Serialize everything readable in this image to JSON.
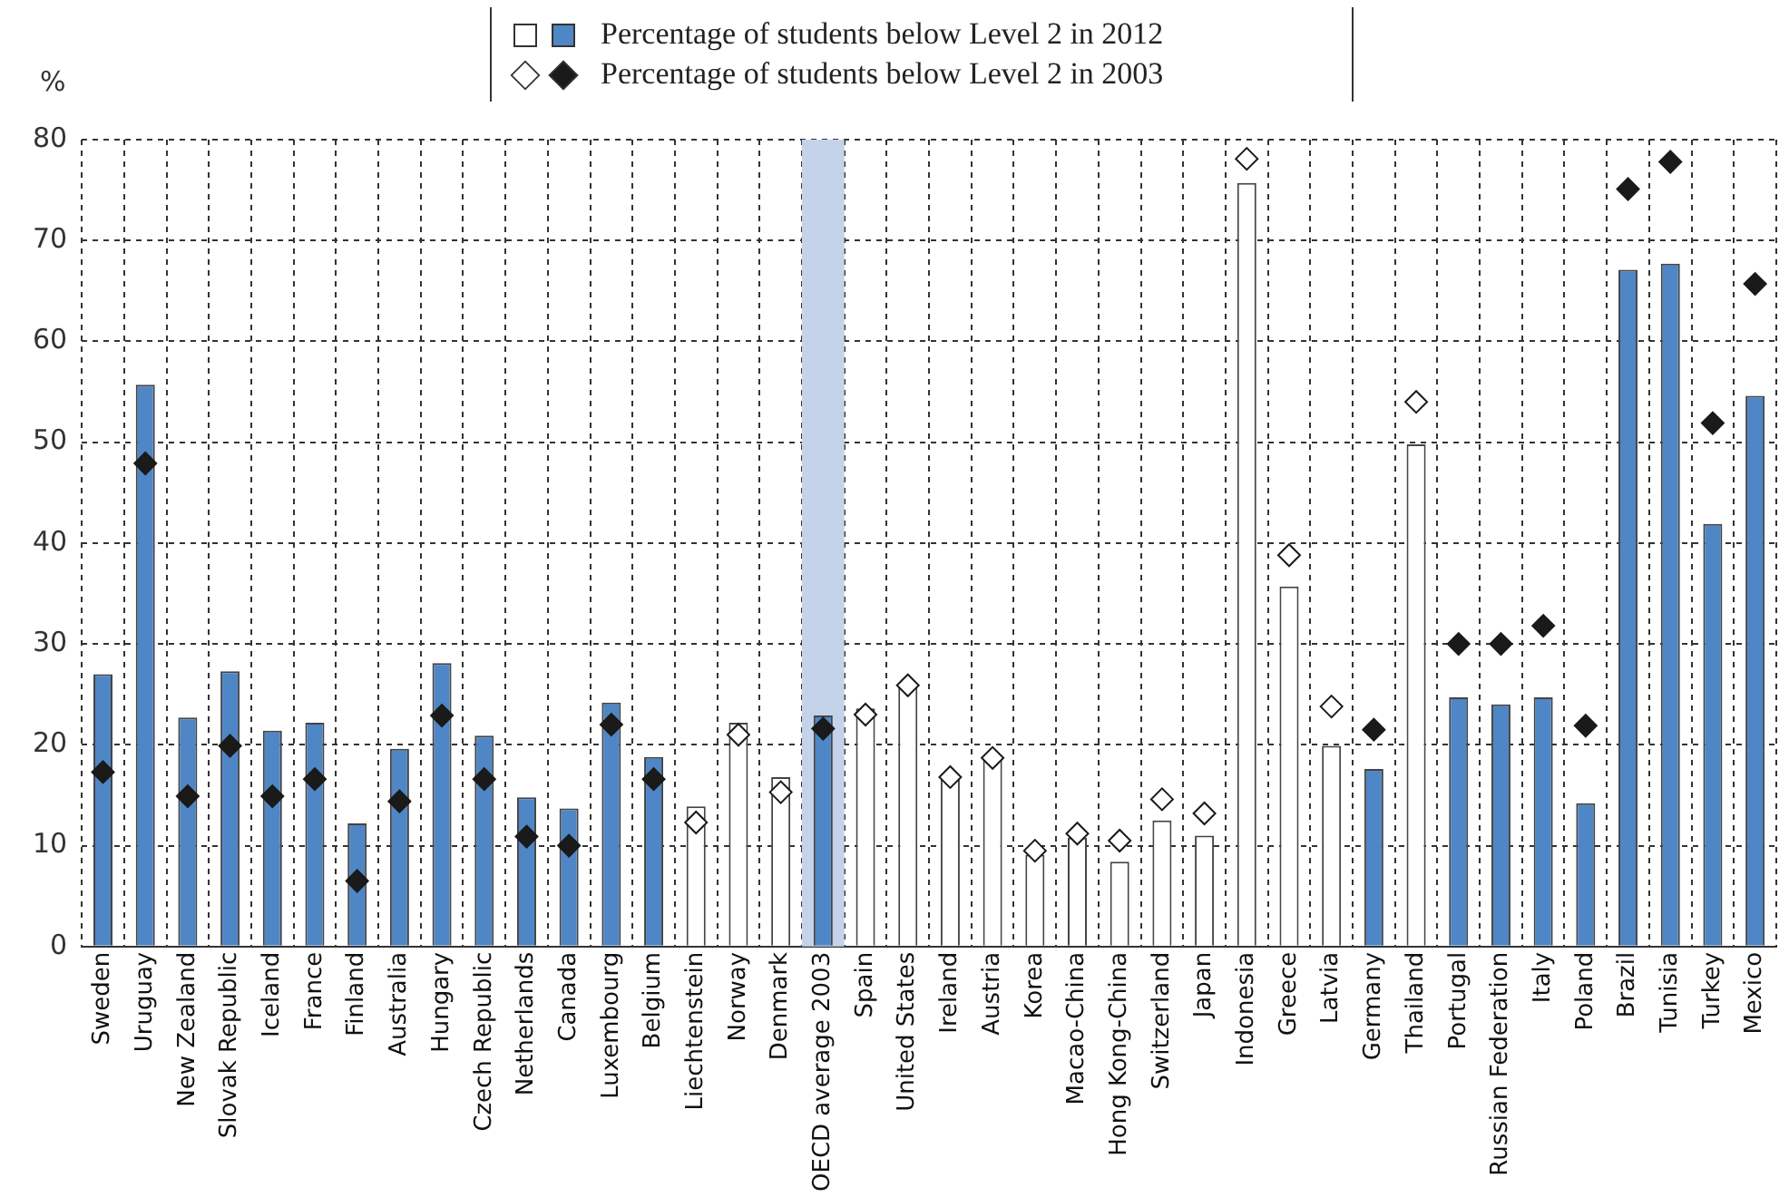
{
  "chart_data": {
    "type": "bar",
    "ylabel": "%",
    "legend": "top",
    "grid": true,
    "categories": [
      "Sweden",
      "Uruguay",
      "New Zealand",
      "Slovak Republic",
      "Iceland",
      "France",
      "Finland",
      "Australia",
      "Hungary",
      "Czech Republic",
      "Netherlands",
      "Canada",
      "Luxembourg",
      "Belgium",
      "Liechtenstein",
      "Norway",
      "Denmark",
      "OECD average 2003",
      "Spain",
      "United States",
      "Ireland",
      "Austria",
      "Korea",
      "Macao-China",
      "Hong Kong-China",
      "Switzerland",
      "Japan",
      "Indonesia",
      "Greece",
      "Latvia",
      "Germany",
      "Thailand",
      "Portugal",
      "Russian Federation",
      "Italy",
      "Poland",
      "Brazil",
      "Tunisia",
      "Turkey",
      "Mexico"
    ],
    "ylim": [
      0,
      80
    ],
    "yticks": [
      0,
      10,
      20,
      30,
      40,
      50,
      60,
      70,
      80
    ],
    "bands": [
      {
        "axis": "x",
        "from": "OECD average 2003",
        "to": "OECD average 2003",
        "color": "#c5d3ea"
      }
    ],
    "series": [
      {
        "name": "Percentage of students below Level 2 in 2012",
        "color": "#4f86c6",
        "values": [
          27.0,
          55.7,
          22.7,
          27.3,
          21.4,
          22.2,
          12.2,
          19.6,
          28.1,
          20.9,
          14.8,
          13.7,
          24.2,
          18.8,
          13.9,
          22.2,
          16.8,
          22.9,
          23.6,
          25.8,
          16.9,
          18.7,
          9.1,
          10.8,
          8.4,
          12.5,
          11.0,
          75.7,
          35.7,
          19.9,
          17.6,
          49.8,
          24.7,
          24.0,
          24.7,
          14.2,
          67.1,
          67.7,
          41.9,
          54.6
        ],
        "colors": [
          "#4f86c6",
          "#4f86c6",
          "#4f86c6",
          "#4f86c6",
          "#4f86c6",
          "#4f86c6",
          "#4f86c6",
          "#4f86c6",
          "#4f86c6",
          "#4f86c6",
          "#4f86c6",
          "#4f86c6",
          "#4f86c6",
          "#4f86c6",
          "#ffffff",
          "#ffffff",
          "#ffffff",
          "#4f86c6",
          "#ffffff",
          "#ffffff",
          "#ffffff",
          "#ffffff",
          "#ffffff",
          "#ffffff",
          "#ffffff",
          "#ffffff",
          "#ffffff",
          "#ffffff",
          "#ffffff",
          "#ffffff",
          "#4f86c6",
          "#ffffff",
          "#4f86c6",
          "#4f86c6",
          "#4f86c6",
          "#4f86c6",
          "#4f86c6",
          "#4f86c6",
          "#4f86c6",
          "#4f86c6"
        ]
      },
      {
        "name": "Percentage of students below Level 2 in 2003",
        "type": "scatter",
        "marker": "diamond",
        "color": "#1a1a1a",
        "values": [
          17.3,
          47.9,
          14.9,
          19.9,
          14.9,
          16.6,
          6.5,
          14.4,
          22.9,
          16.6,
          10.9,
          10.0,
          22.0,
          16.6,
          12.3,
          21.0,
          15.3,
          21.6,
          23.0,
          25.9,
          16.8,
          18.7,
          9.5,
          11.2,
          10.5,
          14.6,
          13.2,
          78.1,
          38.8,
          23.8,
          21.5,
          54.0,
          30.0,
          30.0,
          31.8,
          21.9,
          75.1,
          77.8,
          51.9,
          65.7
        ],
        "colors": [
          "#1a1a1a",
          "#1a1a1a",
          "#1a1a1a",
          "#1a1a1a",
          "#1a1a1a",
          "#1a1a1a",
          "#1a1a1a",
          "#1a1a1a",
          "#1a1a1a",
          "#1a1a1a",
          "#1a1a1a",
          "#1a1a1a",
          "#1a1a1a",
          "#1a1a1a",
          "#ffffff",
          "#ffffff",
          "#ffffff",
          "#1a1a1a",
          "#ffffff",
          "#ffffff",
          "#ffffff",
          "#ffffff",
          "#ffffff",
          "#ffffff",
          "#ffffff",
          "#ffffff",
          "#ffffff",
          "#ffffff",
          "#ffffff",
          "#ffffff",
          "#1a1a1a",
          "#ffffff",
          "#1a1a1a",
          "#1a1a1a",
          "#1a1a1a",
          "#1a1a1a",
          "#1a1a1a",
          "#1a1a1a",
          "#1a1a1a",
          "#1a1a1a"
        ]
      }
    ]
  }
}
